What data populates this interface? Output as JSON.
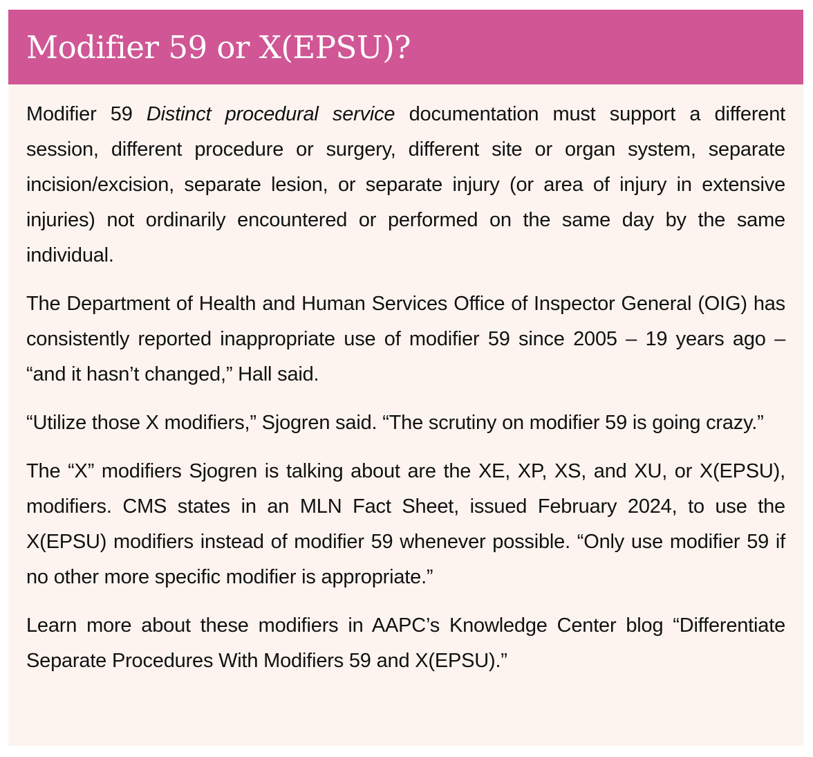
{
  "header": {
    "title": "Modifier 59 or X(EPSU)?",
    "background_color": "#D05695"
  },
  "body_background_color": "#FDF4EF",
  "paragraphs": [
    {
      "before": "Modifier 59 ",
      "italic": "Distinct procedural service",
      "after": " documentation must support a different session, different procedure or surgery, different site or organ system, separate incision/excision, separate lesion, or separate injury (or area of injury in extensive injuries) not ordinarily encountered or performed on the same day by the same individual."
    },
    {
      "text": "The Department of Health and Human Services Office of Inspector General (OIG) has consistently reported inappropriate use of modifier 59 since 2005 – 19 years ago – “and it hasn’t changed,” Hall said."
    },
    {
      "text": "“Utilize those X modifiers,” Sjogren said. “The scrutiny on modifier 59 is going crazy.”"
    },
    {
      "text": "The “X” modifiers Sjogren is talking about are the XE, XP, XS, and XU, or X(EPSU), modifiers. CMS states in an MLN Fact Sheet, issued February 2024, to use the X(EPSU) modifiers instead of modifier 59 whenever possible. “Only use modifier 59 if no other more specific modifier is appropriate.”"
    },
    {
      "text": "Learn more about these modifiers in AAPC’s Knowledge Center blog “Differentiate Separate Procedures With Modifiers 59 and X(EPSU).”"
    }
  ]
}
